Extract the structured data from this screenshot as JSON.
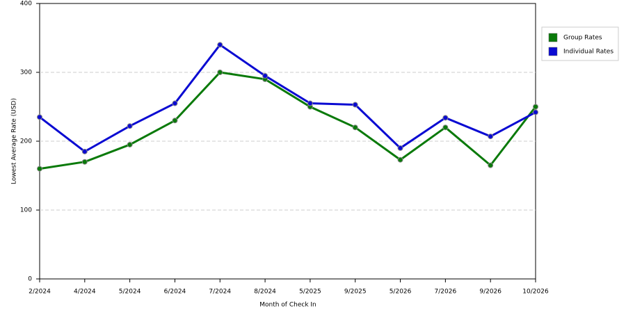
{
  "chart_data": {
    "type": "line",
    "x_label": "Month of Check In",
    "y_label": "Lowest Average Rate (USD)",
    "categories": [
      "2/2024",
      "4/2024",
      "5/2024",
      "6/2024",
      "7/2024",
      "8/2024",
      "5/2025",
      "9/2025",
      "5/2026",
      "7/2026",
      "9/2026",
      "10/2026"
    ],
    "series": [
      {
        "name": "Group Rates",
        "color": "#0a7a0a",
        "values": [
          160,
          170,
          195,
          230,
          300,
          290,
          250,
          220,
          173,
          220,
          165,
          250
        ]
      },
      {
        "name": "Individual Rates",
        "color": "#0a0ad2",
        "values": [
          235,
          185,
          222,
          255,
          340,
          295,
          255,
          253,
          190,
          234,
          207,
          242
        ]
      }
    ],
    "ylim": [
      0,
      400
    ],
    "yticks": [
      0,
      100,
      200,
      300,
      400
    ],
    "grid": true,
    "legend": "right"
  }
}
